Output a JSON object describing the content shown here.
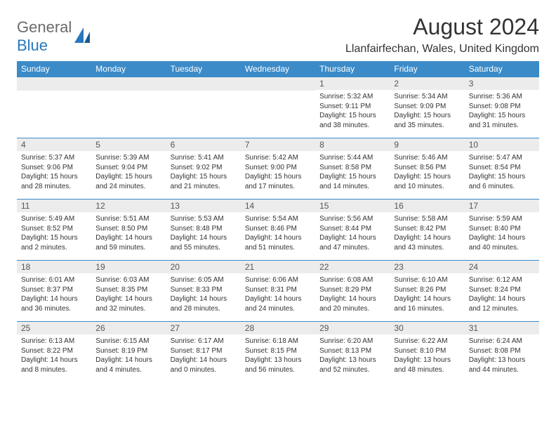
{
  "logo": {
    "text1": "General",
    "text2": "Blue"
  },
  "title": "August 2024",
  "location": "Llanfairfechan, Wales, United Kingdom",
  "colors": {
    "header_bg": "#3b8bc8",
    "header_fg": "#ffffff",
    "daynum_bg": "#ececec",
    "border": "#3b8bc8",
    "logo_gray": "#6b6b6b",
    "logo_blue": "#2878bd"
  },
  "weekdays": [
    "Sunday",
    "Monday",
    "Tuesday",
    "Wednesday",
    "Thursday",
    "Friday",
    "Saturday"
  ],
  "weeks": [
    [
      null,
      null,
      null,
      null,
      {
        "n": "1",
        "sunrise": "5:32 AM",
        "sunset": "9:11 PM",
        "daylight": "15 hours and 38 minutes."
      },
      {
        "n": "2",
        "sunrise": "5:34 AM",
        "sunset": "9:09 PM",
        "daylight": "15 hours and 35 minutes."
      },
      {
        "n": "3",
        "sunrise": "5:36 AM",
        "sunset": "9:08 PM",
        "daylight": "15 hours and 31 minutes."
      }
    ],
    [
      {
        "n": "4",
        "sunrise": "5:37 AM",
        "sunset": "9:06 PM",
        "daylight": "15 hours and 28 minutes."
      },
      {
        "n": "5",
        "sunrise": "5:39 AM",
        "sunset": "9:04 PM",
        "daylight": "15 hours and 24 minutes."
      },
      {
        "n": "6",
        "sunrise": "5:41 AM",
        "sunset": "9:02 PM",
        "daylight": "15 hours and 21 minutes."
      },
      {
        "n": "7",
        "sunrise": "5:42 AM",
        "sunset": "9:00 PM",
        "daylight": "15 hours and 17 minutes."
      },
      {
        "n": "8",
        "sunrise": "5:44 AM",
        "sunset": "8:58 PM",
        "daylight": "15 hours and 14 minutes."
      },
      {
        "n": "9",
        "sunrise": "5:46 AM",
        "sunset": "8:56 PM",
        "daylight": "15 hours and 10 minutes."
      },
      {
        "n": "10",
        "sunrise": "5:47 AM",
        "sunset": "8:54 PM",
        "daylight": "15 hours and 6 minutes."
      }
    ],
    [
      {
        "n": "11",
        "sunrise": "5:49 AM",
        "sunset": "8:52 PM",
        "daylight": "15 hours and 2 minutes."
      },
      {
        "n": "12",
        "sunrise": "5:51 AM",
        "sunset": "8:50 PM",
        "daylight": "14 hours and 59 minutes."
      },
      {
        "n": "13",
        "sunrise": "5:53 AM",
        "sunset": "8:48 PM",
        "daylight": "14 hours and 55 minutes."
      },
      {
        "n": "14",
        "sunrise": "5:54 AM",
        "sunset": "8:46 PM",
        "daylight": "14 hours and 51 minutes."
      },
      {
        "n": "15",
        "sunrise": "5:56 AM",
        "sunset": "8:44 PM",
        "daylight": "14 hours and 47 minutes."
      },
      {
        "n": "16",
        "sunrise": "5:58 AM",
        "sunset": "8:42 PM",
        "daylight": "14 hours and 43 minutes."
      },
      {
        "n": "17",
        "sunrise": "5:59 AM",
        "sunset": "8:40 PM",
        "daylight": "14 hours and 40 minutes."
      }
    ],
    [
      {
        "n": "18",
        "sunrise": "6:01 AM",
        "sunset": "8:37 PM",
        "daylight": "14 hours and 36 minutes."
      },
      {
        "n": "19",
        "sunrise": "6:03 AM",
        "sunset": "8:35 PM",
        "daylight": "14 hours and 32 minutes."
      },
      {
        "n": "20",
        "sunrise": "6:05 AM",
        "sunset": "8:33 PM",
        "daylight": "14 hours and 28 minutes."
      },
      {
        "n": "21",
        "sunrise": "6:06 AM",
        "sunset": "8:31 PM",
        "daylight": "14 hours and 24 minutes."
      },
      {
        "n": "22",
        "sunrise": "6:08 AM",
        "sunset": "8:29 PM",
        "daylight": "14 hours and 20 minutes."
      },
      {
        "n": "23",
        "sunrise": "6:10 AM",
        "sunset": "8:26 PM",
        "daylight": "14 hours and 16 minutes."
      },
      {
        "n": "24",
        "sunrise": "6:12 AM",
        "sunset": "8:24 PM",
        "daylight": "14 hours and 12 minutes."
      }
    ],
    [
      {
        "n": "25",
        "sunrise": "6:13 AM",
        "sunset": "8:22 PM",
        "daylight": "14 hours and 8 minutes."
      },
      {
        "n": "26",
        "sunrise": "6:15 AM",
        "sunset": "8:19 PM",
        "daylight": "14 hours and 4 minutes."
      },
      {
        "n": "27",
        "sunrise": "6:17 AM",
        "sunset": "8:17 PM",
        "daylight": "14 hours and 0 minutes."
      },
      {
        "n": "28",
        "sunrise": "6:18 AM",
        "sunset": "8:15 PM",
        "daylight": "13 hours and 56 minutes."
      },
      {
        "n": "29",
        "sunrise": "6:20 AM",
        "sunset": "8:13 PM",
        "daylight": "13 hours and 52 minutes."
      },
      {
        "n": "30",
        "sunrise": "6:22 AM",
        "sunset": "8:10 PM",
        "daylight": "13 hours and 48 minutes."
      },
      {
        "n": "31",
        "sunrise": "6:24 AM",
        "sunset": "8:08 PM",
        "daylight": "13 hours and 44 minutes."
      }
    ]
  ],
  "labels": {
    "sunrise": "Sunrise: ",
    "sunset": "Sunset: ",
    "daylight": "Daylight: "
  }
}
